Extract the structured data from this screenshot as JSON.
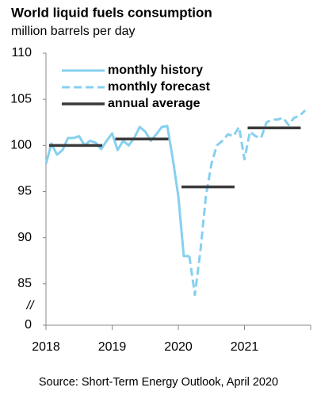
{
  "chart_data": {
    "type": "line",
    "title": "World liquid fuels consumption",
    "subtitle": "million barrels per day",
    "source": "Source: Short-Term Energy Outlook, April 2020",
    "xlim": [
      2018,
      2022
    ],
    "xticks": [
      2018,
      2019,
      2020,
      2021
    ],
    "ylim": [
      0,
      110
    ],
    "yticks": [
      0,
      85,
      90,
      95,
      100,
      105,
      110
    ],
    "axis_break": 80,
    "axis_break_label": "//",
    "legend": "upper left",
    "series": [
      {
        "name": "monthly history",
        "color": "#86d0ef",
        "style": "solid",
        "x": [
          2018,
          2018.083,
          2018.167,
          2018.25,
          2018.333,
          2018.417,
          2018.5,
          2018.583,
          2018.667,
          2018.75,
          2018.833,
          2018.917,
          2019,
          2019.083,
          2019.167,
          2019.25,
          2019.333,
          2019.417,
          2019.5,
          2019.583,
          2019.667,
          2019.75,
          2019.833,
          2019.917,
          2020,
          2020.083,
          2020.167
        ],
        "values": [
          98.0,
          100.2,
          99.0,
          99.5,
          100.8,
          100.8,
          101.0,
          100.0,
          100.5,
          100.3,
          99.6,
          100.5,
          101.3,
          99.5,
          100.5,
          100.0,
          100.8,
          102.0,
          101.5,
          100.5,
          101.2,
          102.0,
          102.1,
          98.5,
          94.5,
          88.0,
          88.0
        ]
      },
      {
        "name": "monthly forecast",
        "color": "#86d0ef",
        "style": "dashed",
        "x": [
          2020.167,
          2020.25,
          2020.333,
          2020.417,
          2020.5,
          2020.583,
          2020.667,
          2020.75,
          2020.833,
          2020.917,
          2021,
          2021.083,
          2021.167,
          2021.25,
          2021.333,
          2021.417,
          2021.5,
          2021.583,
          2021.667,
          2021.75,
          2021.833,
          2021.917
        ],
        "values": [
          88.0,
          83.8,
          88.5,
          94.5,
          98.0,
          100.0,
          100.5,
          101.2,
          101.0,
          102.0,
          98.5,
          101.5,
          101.0,
          100.8,
          102.5,
          102.8,
          102.8,
          103.0,
          102.2,
          103.0,
          103.2,
          103.8
        ]
      },
      {
        "name": "annual average",
        "color": "#3a3a3a",
        "style": "annual",
        "x": [
          2018,
          2019,
          2020,
          2021
        ],
        "values": [
          100.0,
          100.7,
          95.5,
          101.9
        ]
      }
    ]
  }
}
